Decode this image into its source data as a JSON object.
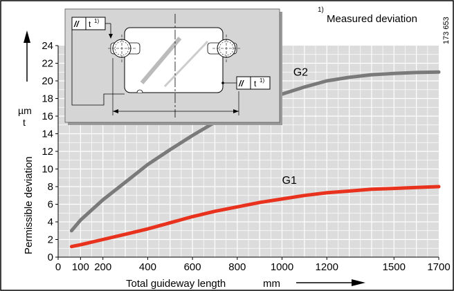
{
  "chart_data": {
    "type": "line",
    "xlabel": "Total guideway length",
    "xunit": "mm",
    "ylabel": "Permissible deviation",
    "yunit_top": "µm",
    "yunit_bottom": "t",
    "xlim": [
      0,
      1700
    ],
    "ylim": [
      0,
      24
    ],
    "x_ticks": [
      "0",
      "100",
      "200",
      "400",
      "600",
      "800",
      "1000",
      "1200",
      "1500",
      "1700"
    ],
    "y_ticks": [
      "0",
      "2",
      "4",
      "6",
      "8",
      "10",
      "12",
      "14",
      "16",
      "18",
      "20",
      "22",
      "24"
    ],
    "grid": true,
    "series": [
      {
        "name": "G1",
        "color": "#e8321e",
        "points": [
          [
            60,
            1.2
          ],
          [
            100,
            1.4
          ],
          [
            200,
            2.0
          ],
          [
            300,
            2.6
          ],
          [
            400,
            3.2
          ],
          [
            500,
            3.9
          ],
          [
            600,
            4.6
          ],
          [
            700,
            5.2
          ],
          [
            800,
            5.7
          ],
          [
            900,
            6.2
          ],
          [
            1000,
            6.6
          ],
          [
            1100,
            7.0
          ],
          [
            1200,
            7.3
          ],
          [
            1300,
            7.5
          ],
          [
            1400,
            7.7
          ],
          [
            1500,
            7.8
          ],
          [
            1600,
            7.9
          ],
          [
            1700,
            8.0
          ]
        ]
      },
      {
        "name": "G2",
        "color": "#7a7a7a",
        "points": [
          [
            60,
            3.0
          ],
          [
            100,
            4.2
          ],
          [
            200,
            6.5
          ],
          [
            300,
            8.5
          ],
          [
            400,
            10.5
          ],
          [
            500,
            12.2
          ],
          [
            600,
            13.8
          ],
          [
            700,
            15.3
          ],
          [
            800,
            16.6
          ],
          [
            900,
            17.7
          ],
          [
            1000,
            18.5
          ],
          [
            1100,
            19.3
          ],
          [
            1200,
            20.0
          ],
          [
            1300,
            20.4
          ],
          [
            1400,
            20.7
          ],
          [
            1500,
            20.85
          ],
          [
            1600,
            20.95
          ],
          [
            1700,
            21.0
          ]
        ]
      }
    ],
    "annotations": {
      "footnote_mark": "1)",
      "footnote_text": "Measured deviation",
      "code": "173 653",
      "symbol": "//",
      "symbol_label": "t",
      "symbol_sup": "1)"
    }
  }
}
